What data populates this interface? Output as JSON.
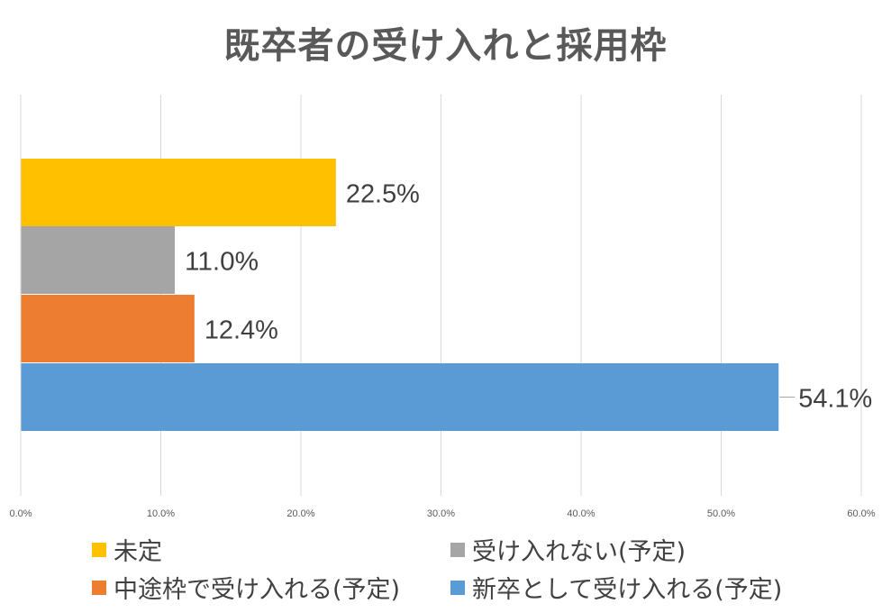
{
  "title": "既卒者の受け入れと採用枠",
  "chart_data": {
    "type": "bar",
    "orientation": "horizontal",
    "categories": [
      "未定",
      "受け入れない(予定)",
      "中途枠で受け入れる(予定)",
      "新卒として受け入れる(予定)"
    ],
    "values": [
      22.5,
      11.0,
      12.4,
      54.1
    ],
    "data_labels": [
      "22.5%",
      "11.0%",
      "12.4%",
      "54.1%"
    ],
    "colors": [
      "#FFC000",
      "#A5A5A5",
      "#ED7D31",
      "#5B9BD5"
    ],
    "xlim": [
      0,
      60
    ],
    "x_ticks": [
      "0.0%",
      "10.0%",
      "20.0%",
      "30.0%",
      "40.0%",
      "50.0%",
      "60.0%"
    ],
    "grid": true,
    "legend_position": "bottom"
  },
  "legend": [
    {
      "label": "未定",
      "color": "#FFC000"
    },
    {
      "label": "受け入れない(予定)",
      "color": "#A5A5A5"
    },
    {
      "label": "中途枠で受け入れる(予定)",
      "color": "#ED7D31"
    },
    {
      "label": "新卒として受け入れる(予定)",
      "color": "#5B9BD5"
    }
  ]
}
